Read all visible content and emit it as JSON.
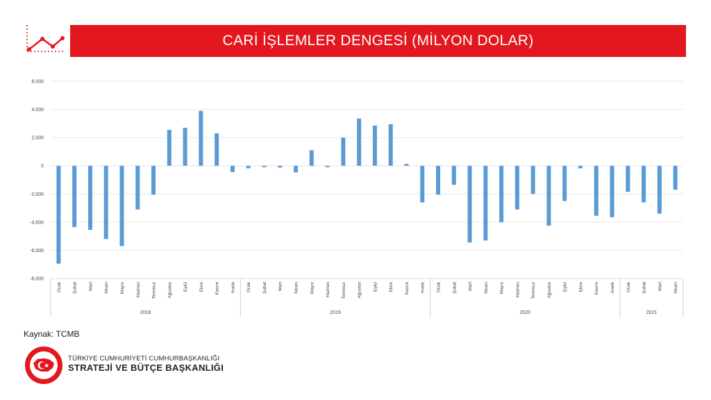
{
  "header": {
    "title": "CARİ İŞLEMLER DENGESİ (MİLYON DOLAR)"
  },
  "colors": {
    "accent": "#e3171e",
    "bar": "#5b9bd5",
    "grid": "#e6e6e6"
  },
  "footer": {
    "source": "Kaynak: TCMB",
    "org_line1": "TÜRKİYE CUMHURİYETİ CUMHURBAŞKANLIĞI",
    "org_line2": "STRATEJİ VE BÜTÇE BAŞKANLIĞI"
  },
  "icons": {
    "logo": "line-chart-icon",
    "emblem": "turkish-emblem-icon"
  },
  "chart_data": {
    "type": "bar",
    "title": "",
    "xlabel": "",
    "ylabel": "",
    "ylim": [
      -8000,
      6000
    ],
    "yticks": [
      6000,
      4000,
      2000,
      0,
      -2000,
      -4000,
      -6000,
      -8000
    ],
    "ytick_labels": [
      "6.000",
      "4.000",
      "2.000",
      "0",
      "-2.000",
      "-4.000",
      "-6.000",
      "-8.000"
    ],
    "grid": true,
    "legend": "none",
    "groups": [
      {
        "label": "2018",
        "start": 0,
        "count": 12
      },
      {
        "label": "2019",
        "start": 12,
        "count": 12
      },
      {
        "label": "2020",
        "start": 24,
        "count": 12
      },
      {
        "label": "2021",
        "start": 36,
        "count": 4
      }
    ],
    "categories": [
      "Ocak",
      "Şubat",
      "Mart",
      "Nisan",
      "Mayıs",
      "Haziran",
      "Temmuz",
      "Ağustos",
      "Eylül",
      "Ekim",
      "Kasım",
      "Aralık",
      "Ocak",
      "Şubat",
      "Mart",
      "Nisan",
      "Mayıs",
      "Haziran",
      "Temmuz",
      "Ağustos",
      "Eylül",
      "Ekim",
      "Kasım",
      "Aralık",
      "Ocak",
      "Şubat",
      "Mart",
      "Nisan",
      "Mayıs",
      "Haziran",
      "Temmuz",
      "Ağustos",
      "Eylül",
      "Ekim",
      "Kasım",
      "Aralık",
      "Ocak",
      "Şubat",
      "Mart",
      "Nisan"
    ],
    "values": [
      -6950,
      -4350,
      -4550,
      -5200,
      -5700,
      -3100,
      -2050,
      2550,
      2700,
      3900,
      2300,
      -450,
      -180,
      -100,
      -130,
      -470,
      1100,
      -100,
      2000,
      3350,
      2850,
      2950,
      130,
      -2600,
      -2050,
      -1350,
      -5450,
      -5300,
      -4000,
      -3100,
      -2000,
      -4250,
      -2500,
      -180,
      -3550,
      -3650,
      -1850,
      -2600,
      -3400,
      -1700
    ]
  }
}
